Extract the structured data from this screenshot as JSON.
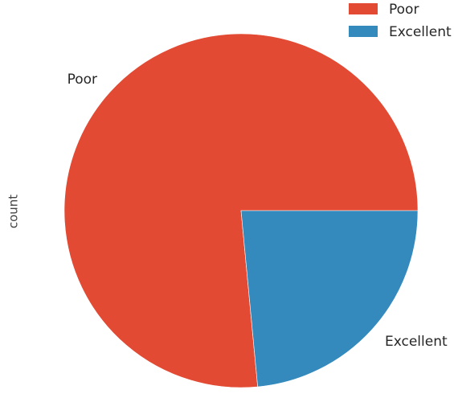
{
  "chart_data": {
    "type": "pie",
    "categories": [
      "Poor",
      "Excellent"
    ],
    "values": [
      76.5,
      23.5
    ],
    "colors": [
      "#E24A33",
      "#348ABD"
    ],
    "ylabel": "count",
    "legend": {
      "placement": "top-right",
      "entries": [
        "Poor",
        "Excellent"
      ]
    },
    "start_angle_deg": 0,
    "direction": "counterclockwise"
  }
}
